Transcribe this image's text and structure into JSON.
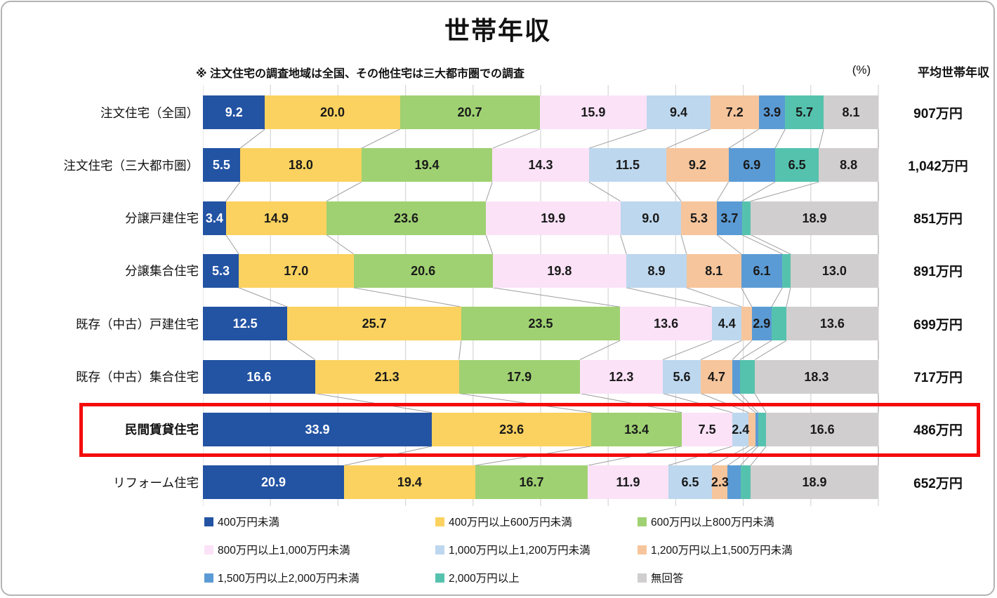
{
  "title": "世帯年収",
  "note": "※ 注文住宅の調査地域は全国、その他住宅は三大都市圏での調査",
  "unit_label": "(%)",
  "avg_header": "平均世帯年収",
  "colors": {
    "highlight_box": "#f40b0b",
    "gridline": "#d9d9d9",
    "connector_line": "#9e9e9e",
    "value_text_on_dark": "#ffffff",
    "value_text": "#1a1a1a"
  },
  "chart_data": {
    "type": "bar",
    "variant": "100%-stacked-horizontal",
    "unit": "%",
    "grid": "vertical lines every 10%",
    "legend_position": "bottom, 3 columns",
    "series_labels": [
      "400万円未満",
      "400万円以上600万円未満",
      "600万円以上800万円未満",
      "800万円以上1,000万円未満",
      "1,000万円以上1,200万円未満",
      "1,200万円以上1,500万円未満",
      "1,500万円以上2,000万円未満",
      "2,000万円以上",
      "無回答"
    ],
    "series_colors": [
      "#2353a3",
      "#fbd25f",
      "#9fd172",
      "#fbe2f7",
      "#bdd7ee",
      "#f6c59c",
      "#5b9bd5",
      "#55c2ae",
      "#d0cece"
    ],
    "rows": [
      {
        "category": "注文住宅（全国）",
        "values": [
          9.2,
          20.0,
          20.7,
          15.9,
          9.4,
          7.2,
          3.9,
          5.7,
          8.1
        ],
        "labels": [
          "9.2",
          "20.0",
          "20.7",
          "15.9",
          "9.4",
          "7.2",
          "3.9",
          "5.7",
          "8.1"
        ],
        "average": "907万円",
        "highlighted": false
      },
      {
        "category": "注文住宅（三大都市圏）",
        "values": [
          5.5,
          18.0,
          19.4,
          14.3,
          11.5,
          9.2,
          6.9,
          6.5,
          8.8
        ],
        "labels": [
          "5.5",
          "18.0",
          "19.4",
          "14.3",
          "11.5",
          "9.2",
          "6.9",
          "6.5",
          "8.8"
        ],
        "average": "1,042万円",
        "highlighted": false
      },
      {
        "category": "分譲戸建住宅",
        "values": [
          3.4,
          14.9,
          23.6,
          19.9,
          9.0,
          5.3,
          3.7,
          1.3,
          18.9
        ],
        "labels": [
          "3.4",
          "14.9",
          "23.6",
          "19.9",
          "9.0",
          "5.3",
          "3.7",
          "",
          "18.9"
        ],
        "average": "851万円",
        "highlighted": false
      },
      {
        "category": "分譲集合住宅",
        "values": [
          5.3,
          17.0,
          20.6,
          19.8,
          8.9,
          8.1,
          6.1,
          1.2,
          13.0
        ],
        "labels": [
          "5.3",
          "17.0",
          "20.6",
          "19.8",
          "8.9",
          "8.1",
          "6.1",
          "",
          "13.0"
        ],
        "average": "891万円",
        "highlighted": false
      },
      {
        "category": "既存（中古）戸建住宅",
        "values": [
          12.5,
          25.7,
          23.5,
          13.6,
          4.4,
          1.5,
          2.9,
          2.2,
          13.6
        ],
        "labels": [
          "12.5",
          "25.7",
          "23.5",
          "13.6",
          "4.4",
          "",
          "2.9",
          "",
          "13.6"
        ],
        "average": "699万円",
        "highlighted": false
      },
      {
        "category": "既存（中古）集合住宅",
        "values": [
          16.6,
          21.3,
          17.9,
          12.3,
          5.6,
          4.7,
          1.1,
          2.2,
          18.3
        ],
        "labels": [
          "16.6",
          "21.3",
          "17.9",
          "12.3",
          "5.6",
          "4.7",
          "",
          "",
          "18.3"
        ],
        "average": "717万円",
        "highlighted": false
      },
      {
        "category": "民間賃貸住宅",
        "values": [
          33.9,
          23.6,
          13.4,
          7.5,
          2.4,
          1.0,
          0.4,
          1.2,
          16.6
        ],
        "labels": [
          "33.9",
          "23.6",
          "13.4",
          "7.5",
          "2.4",
          "",
          "",
          "",
          "16.6"
        ],
        "average": "486万円",
        "highlighted": true
      },
      {
        "category": "リフォーム住宅",
        "values": [
          20.9,
          19.4,
          16.7,
          11.9,
          6.5,
          2.3,
          1.9,
          1.5,
          18.9
        ],
        "labels": [
          "20.9",
          "19.4",
          "16.7",
          "11.9",
          "6.5",
          "2.3",
          "",
          "",
          "18.9"
        ],
        "average": "652万円",
        "highlighted": false
      }
    ]
  }
}
